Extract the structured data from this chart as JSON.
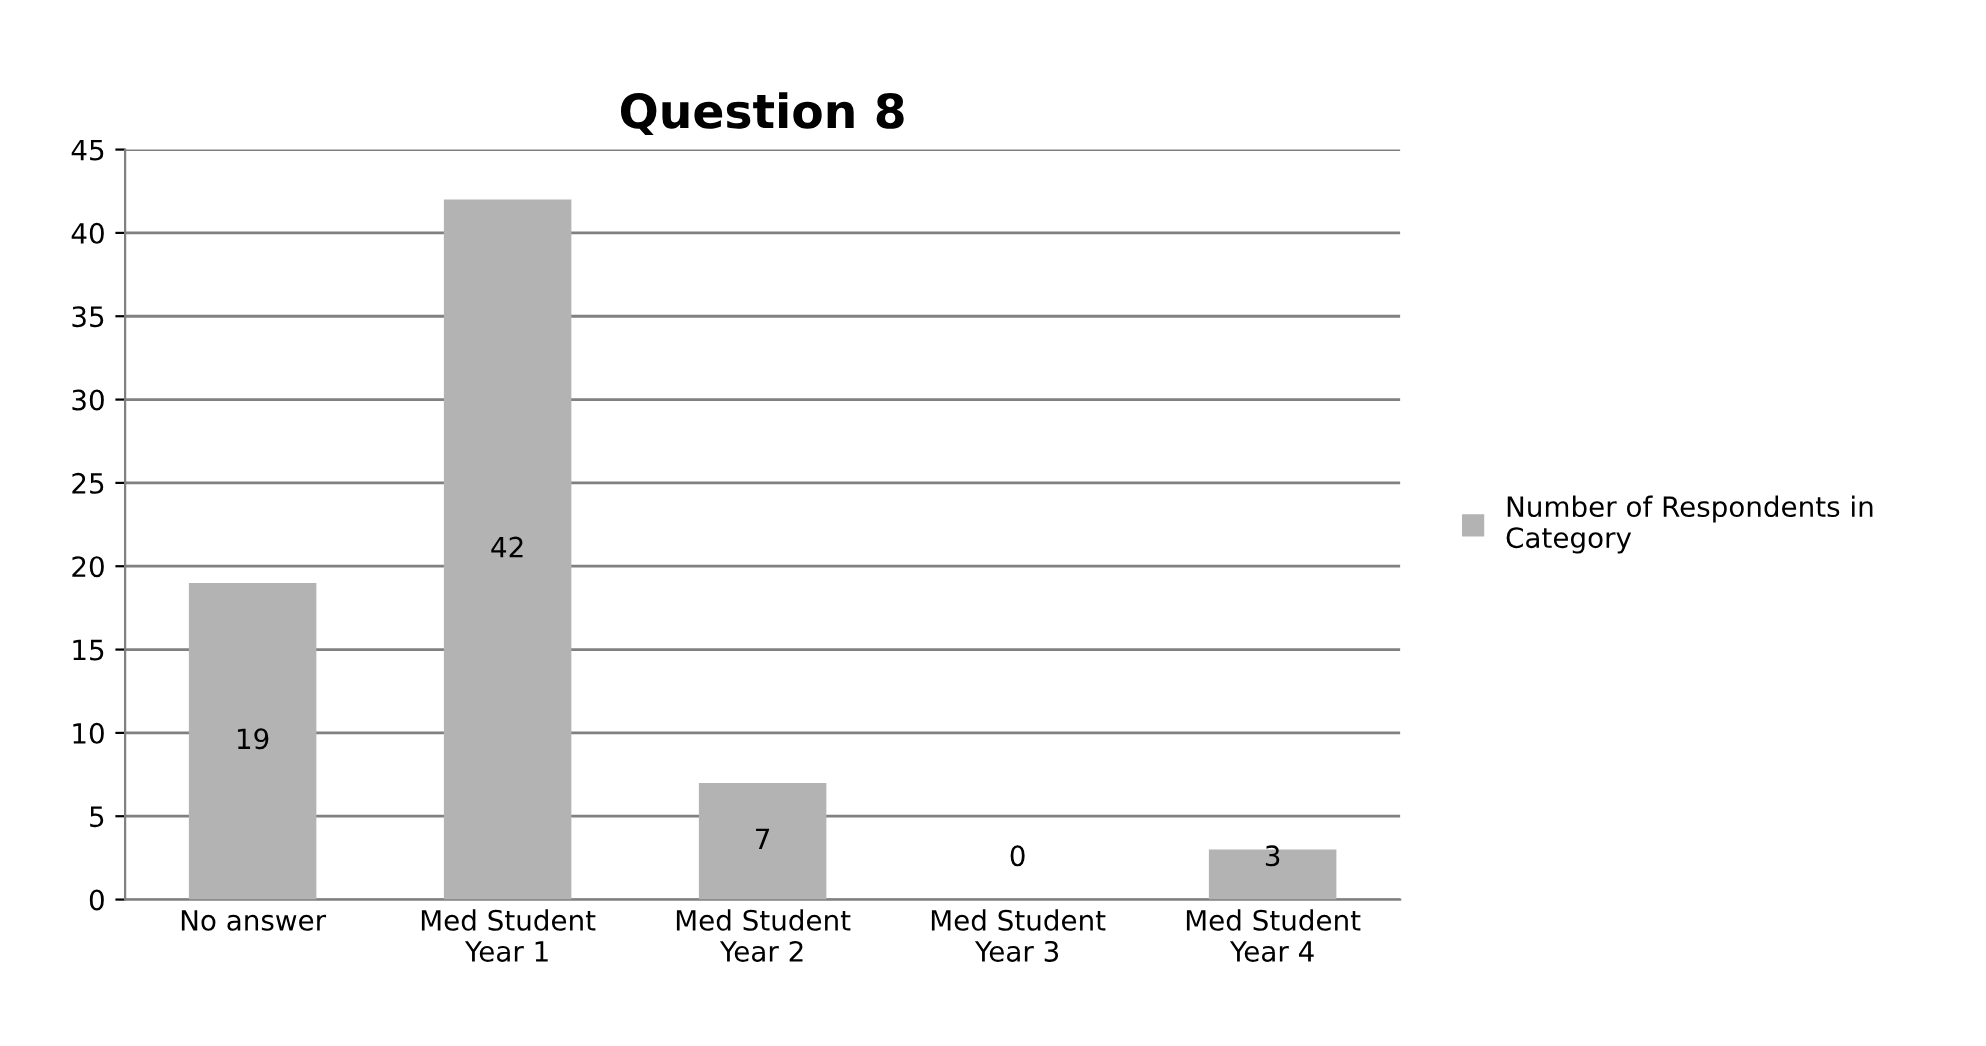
{
  "chart_data": {
    "type": "bar",
    "title": "Question 8",
    "categories": [
      "No answer",
      "Med Student\nYear 1",
      "Med Student\nYear 2",
      "Med Student\nYear 3",
      "Med Student\nYear 4"
    ],
    "series": [
      {
        "name": "Number of Respondents in\nCategory",
        "color": "#b3b3b3",
        "values": [
          19,
          42,
          7,
          0,
          3
        ]
      }
    ],
    "ylim": [
      0,
      45
    ],
    "yticks": [
      0,
      5,
      10,
      15,
      20,
      25,
      30,
      35,
      40,
      45
    ],
    "grid": "y",
    "legend": "right",
    "data_labels": true
  }
}
